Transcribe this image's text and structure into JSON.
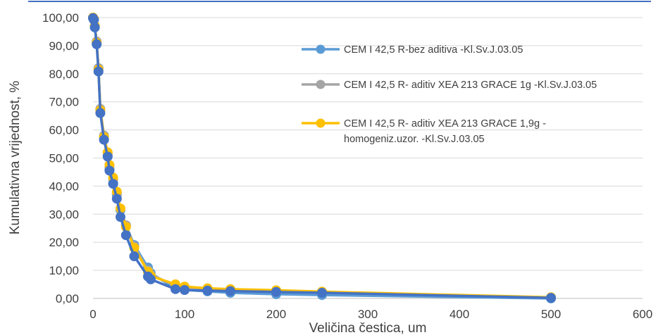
{
  "chart_data": {
    "type": "line",
    "title": "",
    "xlabel": "Veličina čestica, um",
    "ylabel": "Kumulativna vrijednost, %",
    "xlim": [
      0,
      600
    ],
    "ylim": [
      0,
      100
    ],
    "x_ticks": [
      "0",
      "100",
      "200",
      "300",
      "400",
      "500",
      "600"
    ],
    "y_ticks": [
      "0,00",
      "10,00",
      "20,00",
      "30,00",
      "40,00",
      "50,00",
      "60,00",
      "70,00",
      "80,00",
      "90,00",
      "100,00"
    ],
    "grid": "horizontal",
    "legend_position": "right",
    "series": [
      {
        "name": "CEM I 42,5 R-bez aditiva -Kl.Sv.J.03.05",
        "color": "#5B9BD5",
        "points": [
          [
            0,
            100
          ],
          [
            1,
            99.5
          ],
          [
            2,
            97
          ],
          [
            4,
            91
          ],
          [
            6,
            82
          ],
          [
            8,
            67
          ],
          [
            12,
            57
          ],
          [
            16,
            51
          ],
          [
            18,
            46
          ],
          [
            22,
            41
          ],
          [
            26,
            37
          ],
          [
            30,
            31.5
          ],
          [
            36,
            26
          ],
          [
            45,
            19
          ],
          [
            60,
            11
          ],
          [
            63,
            9
          ],
          [
            90,
            3.5
          ],
          [
            100,
            3
          ],
          [
            125,
            2.5
          ],
          [
            150,
            2
          ],
          [
            200,
            1.5
          ],
          [
            250,
            1.2
          ],
          [
            500,
            0
          ]
        ]
      },
      {
        "name": "CEM I 42,5 R- aditiv XEA 213 GRACE 1g -Kl.Sv.J.03.05",
        "color": "#A5A5A5",
        "points": [
          [
            0,
            100
          ],
          [
            1,
            99.5
          ],
          [
            2,
            97
          ],
          [
            4,
            91.5
          ],
          [
            6,
            82
          ],
          [
            8,
            67.5
          ],
          [
            12,
            58
          ],
          [
            16,
            52
          ],
          [
            18,
            47
          ],
          [
            22,
            42.5
          ],
          [
            26,
            37.5
          ],
          [
            30,
            32
          ],
          [
            36,
            26
          ],
          [
            45,
            18.5
          ],
          [
            60,
            10
          ],
          [
            63,
            8.5
          ],
          [
            90,
            4.5
          ],
          [
            100,
            4
          ],
          [
            125,
            3.5
          ],
          [
            150,
            3.2
          ],
          [
            200,
            2.8
          ],
          [
            250,
            2.3
          ],
          [
            500,
            0.3
          ]
        ]
      },
      {
        "name": "CEM I 42,5 R- aditiv XEA 213 GRACE 1,9g - homogeniz.uzor. -Kl.Sv.J.03.05",
        "color": "#FFC000",
        "points": [
          [
            0,
            100
          ],
          [
            1,
            99.5
          ],
          [
            2,
            97
          ],
          [
            4,
            91
          ],
          [
            6,
            81.5
          ],
          [
            8,
            67
          ],
          [
            12,
            57.5
          ],
          [
            16,
            52
          ],
          [
            18,
            47.5
          ],
          [
            22,
            43
          ],
          [
            26,
            38
          ],
          [
            30,
            32
          ],
          [
            36,
            25.5
          ],
          [
            45,
            18
          ],
          [
            60,
            9.5
          ],
          [
            63,
            8
          ],
          [
            90,
            5
          ],
          [
            100,
            4.2
          ],
          [
            125,
            3.6
          ],
          [
            150,
            3.3
          ],
          [
            200,
            2.9
          ],
          [
            250,
            2.4
          ],
          [
            500,
            0.4
          ]
        ]
      },
      {
        "name": "",
        "color": "#4472C4",
        "points": [
          [
            0,
            99.8
          ],
          [
            1,
            99.2
          ],
          [
            2,
            96.5
          ],
          [
            4,
            90.5
          ],
          [
            6,
            80.8
          ],
          [
            8,
            66
          ],
          [
            12,
            56.5
          ],
          [
            16,
            50.5
          ],
          [
            18,
            45.5
          ],
          [
            22,
            40.8
          ],
          [
            26,
            35.5
          ],
          [
            30,
            29
          ],
          [
            36,
            22.5
          ],
          [
            45,
            15
          ],
          [
            60,
            7.8
          ],
          [
            63,
            6.8
          ],
          [
            90,
            3.3
          ],
          [
            100,
            3
          ],
          [
            125,
            2.8
          ],
          [
            150,
            2.6
          ],
          [
            200,
            2.3
          ],
          [
            250,
            2
          ],
          [
            500,
            0.2
          ]
        ]
      }
    ]
  }
}
